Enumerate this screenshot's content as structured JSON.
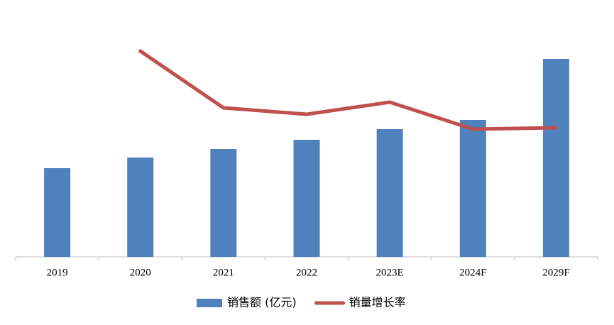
{
  "chart_data": {
    "type": "bar-line",
    "categories": [
      "2019",
      "2020",
      "2021",
      "2022",
      "2023E",
      "2024F",
      "2029F"
    ],
    "series": [
      {
        "name": "销售额 (亿元)",
        "type": "bar",
        "color": "#4f81bd",
        "values": [
          125,
          140,
          152,
          165,
          180,
          193,
          279
        ]
      },
      {
        "name": "销量增长率",
        "type": "line",
        "axis": "y2",
        "color": "#c0504d",
        "values": [
          null,
          29.0,
          21.0,
          20.1,
          21.8,
          18.0,
          18.2
        ]
      }
    ],
    "ylim": [
      0,
      350
    ],
    "y2lim": [
      0,
      35
    ],
    "legend": "bottom"
  }
}
